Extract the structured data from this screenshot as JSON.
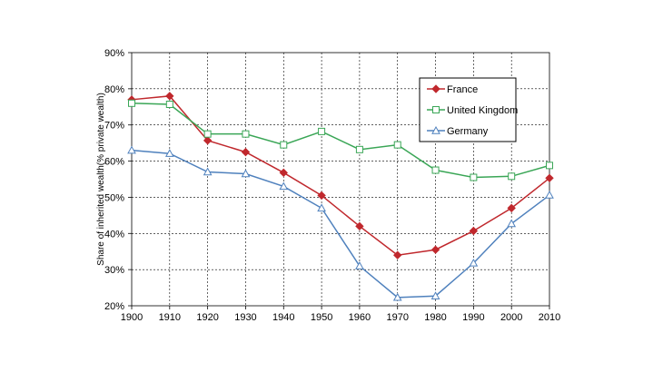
{
  "chart_data": {
    "type": "line",
    "title": "",
    "xlabel": "",
    "ylabel": "Share of inherited wealth(% private wealth)",
    "x": [
      1900,
      1910,
      1920,
      1930,
      1940,
      1950,
      1960,
      1970,
      1980,
      1990,
      2000,
      2010
    ],
    "x_ticks": [
      "1900",
      "1910",
      "1920",
      "1930",
      "1940",
      "1950",
      "1960",
      "1970",
      "1980",
      "1990",
      "2000",
      "2010"
    ],
    "ylim": [
      20,
      90
    ],
    "y_ticks": [
      20,
      30,
      40,
      50,
      60,
      70,
      80,
      90
    ],
    "y_tick_labels": [
      "20%",
      "30%",
      "40%",
      "50%",
      "60%",
      "70%",
      "80%",
      "90%"
    ],
    "grid": true,
    "legend_position": "top-right",
    "series": [
      {
        "name": "France",
        "color": "#c0282d",
        "marker": "filled-diamond",
        "values": [
          77,
          78,
          65.7,
          62.5,
          56.8,
          50.5,
          42,
          34,
          35.5,
          40.7,
          47,
          55.3
        ]
      },
      {
        "name": "United Kingdom",
        "color": "#3aa656",
        "marker": "open-square",
        "values": [
          76,
          75.7,
          67.5,
          67.5,
          64.5,
          68.2,
          63.2,
          64.5,
          57.5,
          55.5,
          55.8,
          58.8
        ]
      },
      {
        "name": "Germany",
        "color": "#4f81bd",
        "marker": "open-triangle",
        "values": [
          63,
          62.1,
          57,
          56.5,
          53,
          47,
          31,
          22.3,
          22.7,
          31.8,
          42.7,
          50.6
        ]
      }
    ]
  }
}
